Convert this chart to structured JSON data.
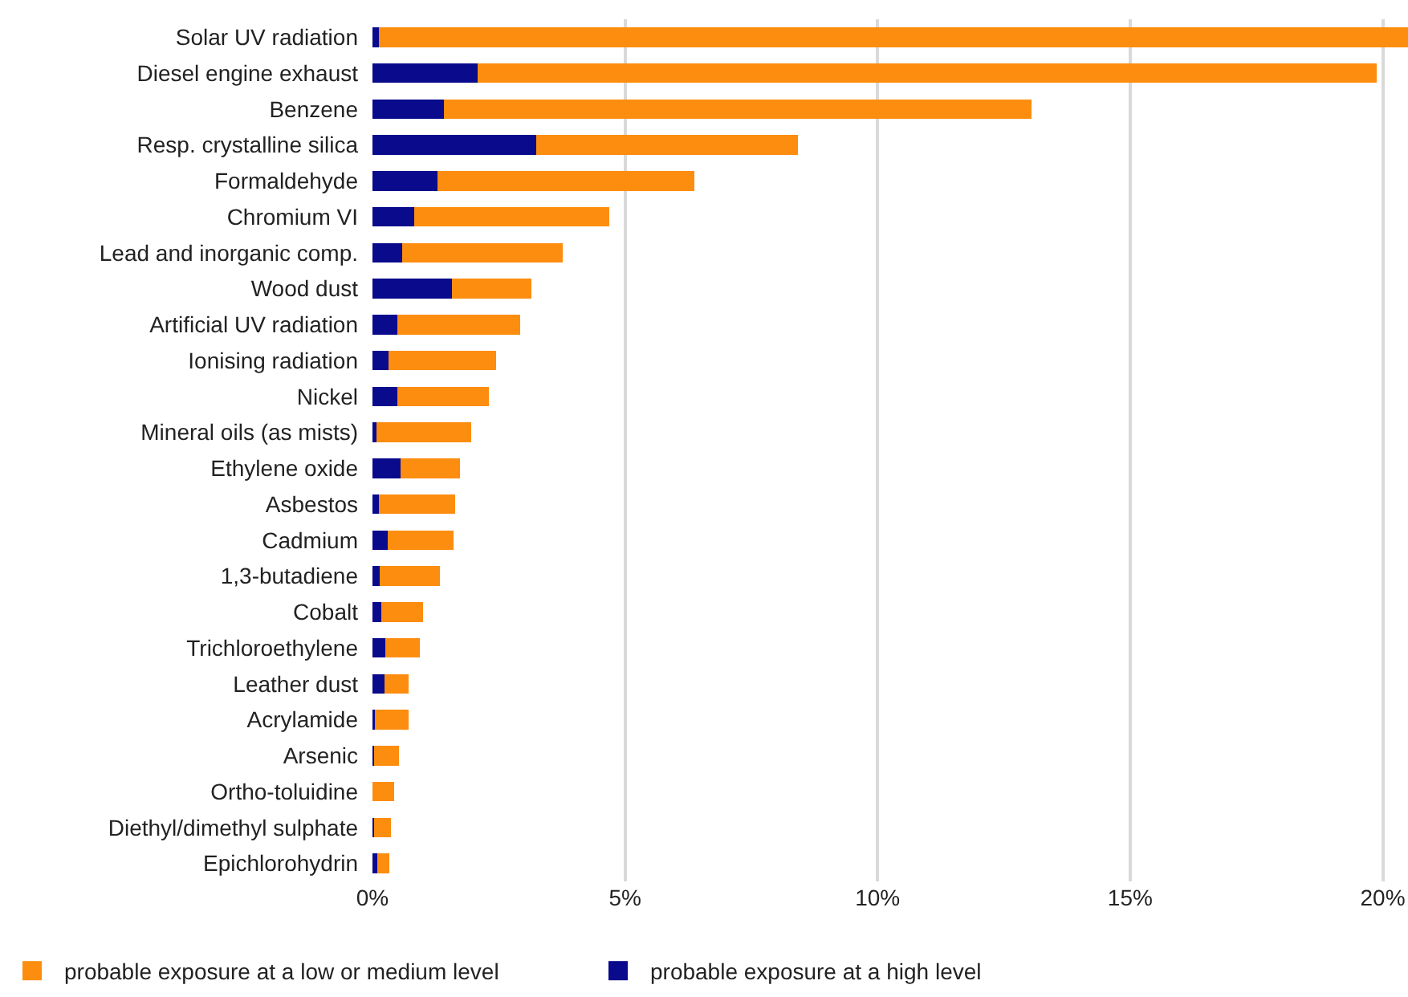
{
  "chart_data": {
    "type": "bar",
    "orientation": "horizontal",
    "stacked": true,
    "categories": [
      "Solar UV radiation",
      "Diesel engine exhaust",
      "Benzene",
      "Resp. crystalline silica",
      "Formaldehyde",
      "Chromium VI",
      "Lead and inorganic comp.",
      "Wood dust",
      "Artificial UV radiation",
      "Ionising radiation",
      "Nickel",
      "Mineral oils (as mists)",
      "Ethylene oxide",
      "Asbestos",
      "Cadmium",
      "1,3-butadiene",
      "Cobalt",
      "Trichloroethylene",
      "Leather dust",
      "Acrylamide",
      "Arsenic",
      "Ortho-toluidine",
      "Diethyl/dimethyl sulphate",
      "Epichlorohydrin"
    ],
    "series": [
      {
        "name": "probable exposure at a high level",
        "color": "#0a0a8c",
        "values": [
          0.13,
          2.08,
          1.42,
          3.24,
          1.28,
          0.83,
          0.58,
          1.57,
          0.5,
          0.31,
          0.5,
          0.08,
          0.56,
          0.13,
          0.3,
          0.14,
          0.17,
          0.25,
          0.24,
          0.04,
          0.03,
          0.0,
          0.03,
          0.1
        ]
      },
      {
        "name": "probable exposure at a low or medium level",
        "color": "#fd8d0f",
        "values": [
          20.37,
          17.8,
          11.63,
          5.18,
          5.09,
          3.85,
          3.19,
          1.58,
          2.42,
          2.14,
          1.8,
          1.88,
          1.17,
          1.51,
          1.31,
          1.19,
          0.83,
          0.69,
          0.48,
          0.68,
          0.5,
          0.43,
          0.33,
          0.23
        ]
      }
    ],
    "xlim": [
      0,
      20.5
    ],
    "xticks": [
      {
        "value": 0,
        "label": "0%"
      },
      {
        "value": 5,
        "label": "5%"
      },
      {
        "value": 10,
        "label": "10%"
      },
      {
        "value": 15,
        "label": "15%"
      },
      {
        "value": 20,
        "label": "20%"
      }
    ],
    "grid": "x",
    "legend": "bottom"
  }
}
